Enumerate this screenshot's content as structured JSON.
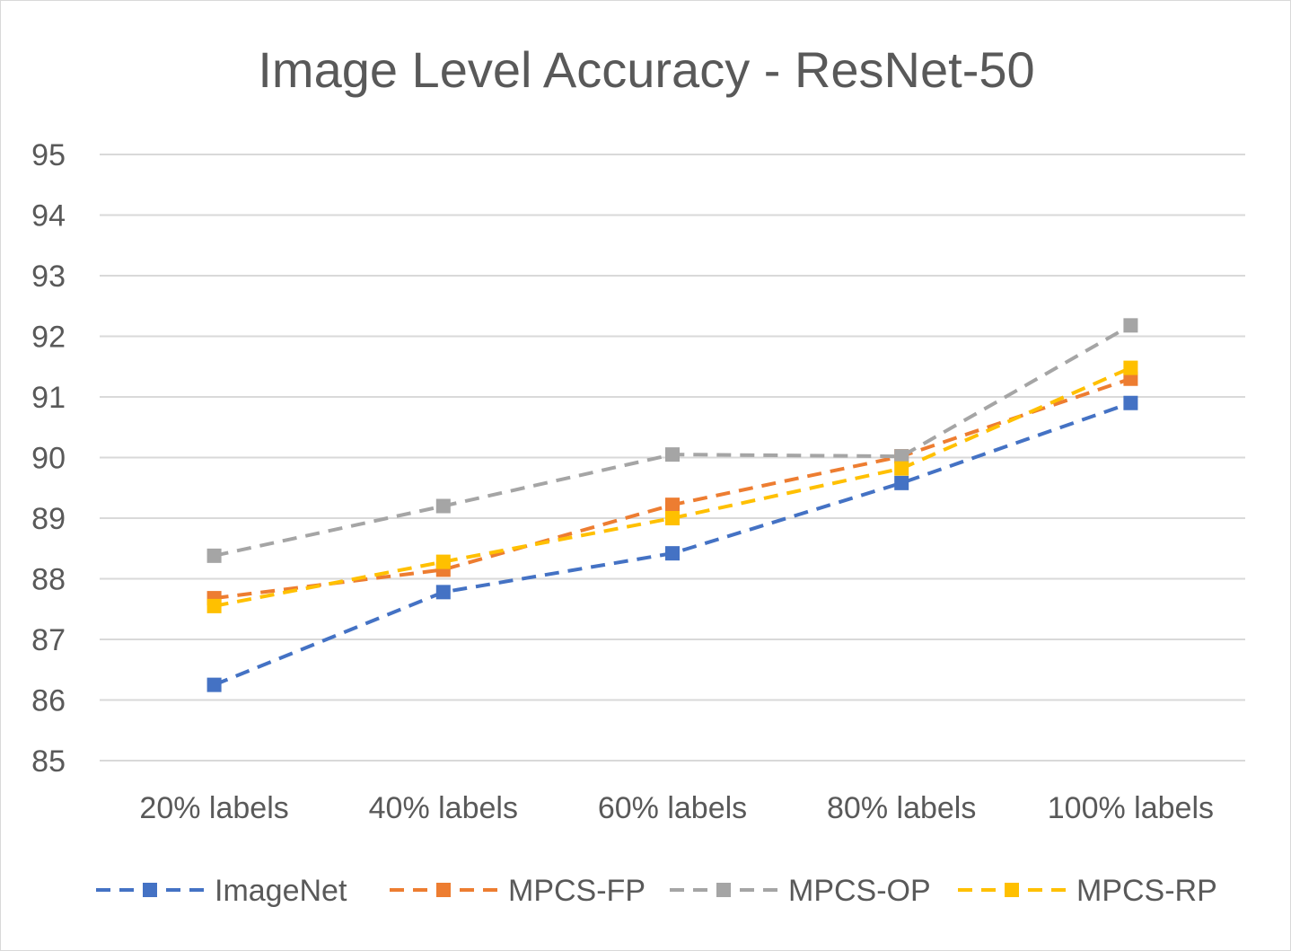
{
  "chart_data": {
    "type": "line",
    "title": "Image Level Accuracy - ResNet-50",
    "xlabel": "",
    "ylabel": "",
    "categories": [
      "20% labels",
      "40% labels",
      "60% labels",
      "80% labels",
      "100% labels"
    ],
    "ylim": [
      85,
      95
    ],
    "yticks": [
      85,
      86,
      87,
      88,
      89,
      90,
      91,
      92,
      93,
      94,
      95
    ],
    "grid": true,
    "legend_position": "bottom",
    "series": [
      {
        "name": "ImageNet",
        "color": "#4472C4",
        "values": [
          86.25,
          87.78,
          88.42,
          89.58,
          90.9
        ]
      },
      {
        "name": "MPCS-FP",
        "color": "#ED7D31",
        "values": [
          87.68,
          88.15,
          89.22,
          90.02,
          91.3
        ]
      },
      {
        "name": "MPCS-OP",
        "color": "#A5A5A5",
        "values": [
          88.38,
          89.2,
          90.05,
          90.02,
          92.18
        ]
      },
      {
        "name": "MPCS-RP",
        "color": "#FFC000",
        "values": [
          87.55,
          88.28,
          89.0,
          89.82,
          91.48
        ]
      }
    ]
  }
}
